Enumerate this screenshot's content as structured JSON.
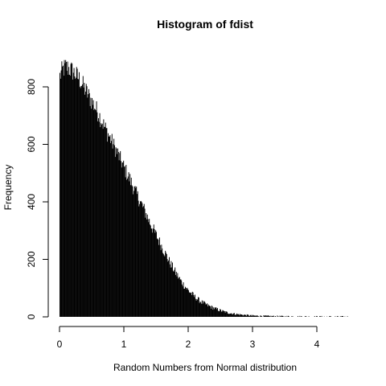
{
  "chart_data": {
    "type": "bar",
    "title": "Histogram of fdist",
    "xlabel": "Random Numbers from Normal distribution",
    "ylabel": "Frequency",
    "xlim": [
      0,
      4.5
    ],
    "ylim": [
      0,
      900
    ],
    "x_ticks": [
      "0",
      "1",
      "2",
      "3",
      "4"
    ],
    "y_ticks": [
      "0",
      "200",
      "400",
      "600",
      "800"
    ],
    "bin_width": 0.01,
    "bins": {
      "x_start": 0,
      "x_end": 4.5,
      "profile": [
        [
          0.0,
          835
        ],
        [
          0.05,
          860
        ],
        [
          0.1,
          870
        ],
        [
          0.2,
          855
        ],
        [
          0.3,
          830
        ],
        [
          0.4,
          790
        ],
        [
          0.5,
          750
        ],
        [
          0.6,
          710
        ],
        [
          0.7,
          660
        ],
        [
          0.8,
          615
        ],
        [
          0.9,
          570
        ],
        [
          1.0,
          520
        ],
        [
          1.1,
          475
        ],
        [
          1.2,
          425
        ],
        [
          1.3,
          380
        ],
        [
          1.4,
          330
        ],
        [
          1.5,
          285
        ],
        [
          1.6,
          240
        ],
        [
          1.7,
          195
        ],
        [
          1.8,
          155
        ],
        [
          1.9,
          120
        ],
        [
          2.0,
          92
        ],
        [
          2.1,
          70
        ],
        [
          2.2,
          52
        ],
        [
          2.3,
          40
        ],
        [
          2.4,
          30
        ],
        [
          2.5,
          22
        ],
        [
          2.6,
          15
        ],
        [
          2.7,
          11
        ],
        [
          2.8,
          8
        ],
        [
          2.9,
          6
        ],
        [
          3.0,
          4
        ],
        [
          3.2,
          2.5
        ],
        [
          3.4,
          1.5
        ],
        [
          3.6,
          1
        ],
        [
          3.8,
          0.6
        ],
        [
          4.0,
          0.3
        ],
        [
          4.5,
          0
        ]
      ]
    },
    "grid": false,
    "legend": "none"
  }
}
